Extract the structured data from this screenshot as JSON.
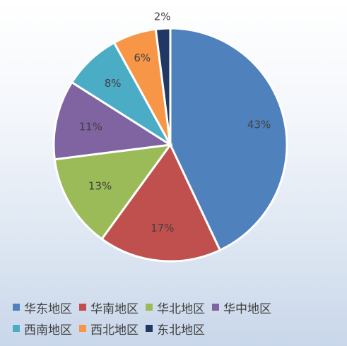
{
  "chart_data": {
    "type": "pie",
    "title": "",
    "categories": [
      "华东地区",
      "华南地区",
      "华北地区",
      "华中地区",
      "西南地区",
      "西北地区",
      "东北地区"
    ],
    "values": [
      43,
      17,
      13,
      11,
      8,
      6,
      2
    ],
    "labels": [
      "43%",
      "17%",
      "13%",
      "11%",
      "8%",
      "6%",
      "2%"
    ],
    "colors": [
      "#4f81bd",
      "#c0504d",
      "#9bbb59",
      "#8064a2",
      "#4bacc6",
      "#f79646",
      "#1f3864"
    ],
    "legend_position": "bottom",
    "start_angle": "12 o'clock",
    "direction": "clockwise"
  }
}
